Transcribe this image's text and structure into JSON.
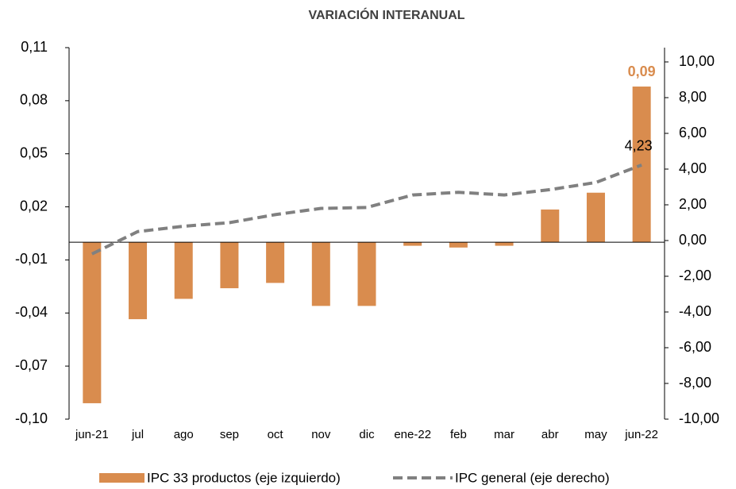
{
  "chart_data": {
    "type": "bar-line",
    "title": "VARIACIÓN INTERANUAL",
    "categories": [
      "jun-21",
      "jul",
      "ago",
      "sep",
      "oct",
      "nov",
      "dic",
      "ene-22",
      "feb",
      "mar",
      "abr",
      "may",
      "jun-22"
    ],
    "series": [
      {
        "name": "IPC 33 productos (eje izquierdo)",
        "type": "bar",
        "color": "#d98c4e",
        "values": [
          -0.091,
          -0.0435,
          -0.032,
          -0.026,
          -0.023,
          -0.036,
          -0.036,
          -0.002,
          -0.003,
          -0.002,
          0.0185,
          0.028,
          0.088
        ],
        "value_labels": [
          null,
          null,
          null,
          null,
          null,
          null,
          null,
          null,
          null,
          null,
          null,
          null,
          "0,09"
        ]
      },
      {
        "name": "IPC general (eje derecho)",
        "type": "line",
        "axis": "y2",
        "color": "#808080",
        "dashed": true,
        "values": [
          -0.75,
          0.5,
          0.8,
          1.0,
          1.45,
          1.8,
          1.85,
          2.55,
          2.7,
          2.55,
          2.85,
          3.25,
          4.23
        ],
        "value_labels": [
          null,
          null,
          null,
          null,
          null,
          null,
          null,
          null,
          null,
          null,
          null,
          null,
          "4,23"
        ]
      }
    ],
    "ylim": [
      -0.1,
      0.11
    ],
    "yticks": [
      {
        "value": -0.1,
        "label": "-0,10"
      },
      {
        "value": -0.07,
        "label": "-0,07"
      },
      {
        "value": -0.04,
        "label": "-0,04"
      },
      {
        "value": -0.01,
        "label": "-0,01"
      },
      {
        "value": 0.02,
        "label": "0,02"
      },
      {
        "value": 0.05,
        "label": "0,05"
      },
      {
        "value": 0.08,
        "label": "0,08"
      },
      {
        "value": 0.11,
        "label": "0,11"
      }
    ],
    "y2lim": [
      -10,
      10.8
    ],
    "y2ticks": [
      {
        "value": -10,
        "label": "-10,00"
      },
      {
        "value": -8,
        "label": "-8,00"
      },
      {
        "value": -6,
        "label": "-6,00"
      },
      {
        "value": -4,
        "label": "-4,00"
      },
      {
        "value": -2,
        "label": "-2,00"
      },
      {
        "value": 0,
        "label": "0,00"
      },
      {
        "value": 2,
        "label": "2,00"
      },
      {
        "value": 4,
        "label": "4,00"
      },
      {
        "value": 6,
        "label": "6,00"
      },
      {
        "value": 8,
        "label": "8,00"
      },
      {
        "value": 10,
        "label": "10,00"
      }
    ],
    "legend": "bottom"
  }
}
